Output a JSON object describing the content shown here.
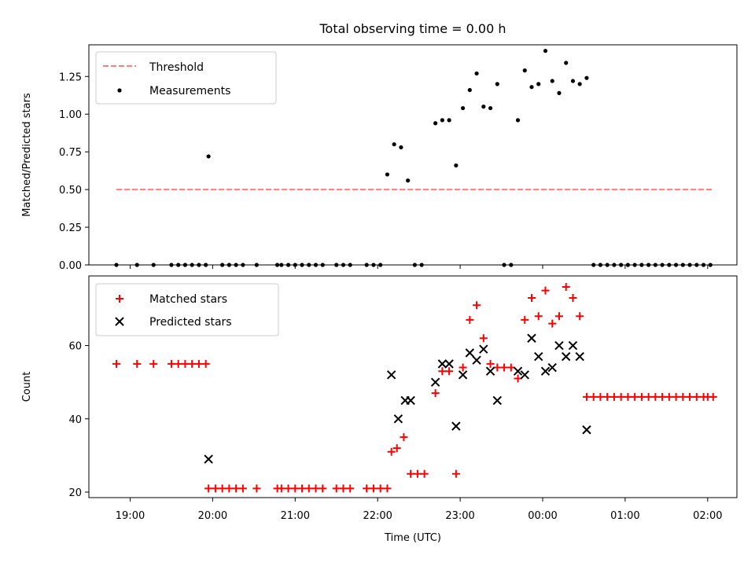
{
  "title": "Total observing time = 0.00 h",
  "colors": {
    "threshold": "#ff7f7f",
    "measurements": "#000000",
    "matched": "#ff0000",
    "predicted": "#000000"
  },
  "chart_data": [
    {
      "type": "scatter",
      "ylabel": "Matched/Predicted stars",
      "ylim": [
        0,
        1.46
      ],
      "yticks": [
        "0.00",
        "0.25",
        "0.50",
        "0.75",
        "1.00",
        "1.25"
      ],
      "ytick_values": [
        0,
        0.25,
        0.5,
        0.75,
        1.0,
        1.25
      ],
      "legend": {
        "placement": "top-left",
        "entries": [
          "Threshold",
          "Measurements"
        ]
      },
      "series": [
        {
          "name": "Threshold",
          "style": "dashed-line",
          "x": [
            "18:50",
            "02:03"
          ],
          "values": [
            0.5,
            0.5
          ]
        },
        {
          "name": "Measurements",
          "style": "point",
          "x": [
            "18:50",
            "19:05",
            "19:17",
            "19:30",
            "19:35",
            "19:40",
            "19:45",
            "19:50",
            "19:55",
            "19:57",
            "20:07",
            "20:12",
            "20:17",
            "20:22",
            "20:32",
            "20:47",
            "20:50",
            "20:55",
            "21:00",
            "21:05",
            "21:10",
            "21:15",
            "21:20",
            "21:30",
            "21:35",
            "21:40",
            "21:52",
            "21:57",
            "22:02",
            "22:07",
            "22:12",
            "22:17",
            "22:22",
            "22:27",
            "22:32",
            "22:42",
            "22:47",
            "22:52",
            "22:57",
            "23:02",
            "23:07",
            "23:12",
            "23:17",
            "23:22",
            "23:27",
            "23:32",
            "23:37",
            "23:42",
            "23:47",
            "23:52",
            "23:57",
            "00:02",
            "00:07",
            "00:12",
            "00:17",
            "00:22",
            "00:27",
            "00:32",
            "00:37",
            "00:42",
            "00:47",
            "00:52",
            "00:57",
            "01:02",
            "01:07",
            "01:12",
            "01:17",
            "01:22",
            "01:27",
            "01:32",
            "01:37",
            "01:42",
            "01:47",
            "01:52",
            "01:57",
            "02:02"
          ],
          "values": [
            0,
            0,
            0,
            0,
            0,
            0,
            0,
            0,
            0,
            0.72,
            0,
            0,
            0,
            0,
            0,
            0,
            0,
            0,
            0,
            0,
            0,
            0,
            0,
            0,
            0,
            0,
            0,
            0,
            0,
            0.6,
            0.8,
            0.78,
            0.56,
            0,
            0,
            0.94,
            0.96,
            0.96,
            0.66,
            1.04,
            1.16,
            1.27,
            1.05,
            1.04,
            1.2,
            0,
            0,
            0.96,
            1.29,
            1.18,
            1.2,
            1.42,
            1.22,
            1.14,
            1.34,
            1.22,
            1.2,
            1.24,
            0,
            0,
            0,
            0,
            0,
            0,
            0,
            0,
            0,
            0,
            0,
            0,
            0,
            0,
            0,
            0,
            0,
            0
          ]
        }
      ]
    },
    {
      "type": "scatter",
      "ylabel": "Count",
      "xlabel": "Time (UTC)",
      "ylim": [
        18.5,
        79
      ],
      "yticks": [
        "20",
        "40",
        "60"
      ],
      "ytick_values": [
        20,
        40,
        60
      ],
      "xticks": [
        "19:00",
        "20:00",
        "21:00",
        "22:00",
        "23:00",
        "00:00",
        "01:00",
        "02:00"
      ],
      "legend": {
        "placement": "top-left",
        "entries": [
          "Matched stars",
          "Predicted stars"
        ]
      },
      "series": [
        {
          "name": "Matched stars",
          "marker": "plus",
          "x": [
            "18:50",
            "19:05",
            "19:17",
            "19:30",
            "19:35",
            "19:40",
            "19:45",
            "19:50",
            "19:55",
            "19:57",
            "20:02",
            "20:07",
            "20:12",
            "20:17",
            "20:22",
            "20:32",
            "20:47",
            "20:50",
            "20:55",
            "21:00",
            "21:05",
            "21:10",
            "21:15",
            "21:20",
            "21:30",
            "21:35",
            "21:40",
            "21:52",
            "21:57",
            "22:02",
            "22:07",
            "22:10",
            "22:14",
            "22:19",
            "22:24",
            "22:29",
            "22:34",
            "22:42",
            "22:47",
            "22:52",
            "22:57",
            "23:02",
            "23:07",
            "23:12",
            "23:17",
            "23:22",
            "23:27",
            "23:32",
            "23:37",
            "23:42",
            "23:47",
            "23:52",
            "23:57",
            "00:02",
            "00:07",
            "00:12",
            "00:17",
            "00:22",
            "00:27",
            "00:32",
            "00:37",
            "00:42",
            "00:47",
            "00:52",
            "00:57",
            "01:02",
            "01:07",
            "01:12",
            "01:17",
            "01:22",
            "01:27",
            "01:32",
            "01:37",
            "01:42",
            "01:47",
            "01:52",
            "01:57",
            "02:00",
            "02:04"
          ],
          "values": [
            55,
            55,
            55,
            55,
            55,
            55,
            55,
            55,
            55,
            21,
            21,
            21,
            21,
            21,
            21,
            21,
            21,
            21,
            21,
            21,
            21,
            21,
            21,
            21,
            21,
            21,
            21,
            21,
            21,
            21,
            21,
            31,
            32,
            35,
            25,
            25,
            25,
            47,
            53,
            53,
            25,
            54,
            67,
            71,
            62,
            55,
            54,
            54,
            54,
            51,
            67,
            73,
            68,
            75,
            66,
            68,
            76,
            73,
            68,
            46,
            46,
            46,
            46,
            46,
            46,
            46,
            46,
            46,
            46,
            46,
            46,
            46,
            46,
            46,
            46,
            46,
            46,
            46,
            46
          ]
        },
        {
          "name": "Predicted stars",
          "marker": "x",
          "x": [
            "19:57",
            "22:10",
            "22:15",
            "22:20",
            "22:24",
            "22:42",
            "22:47",
            "22:52",
            "22:57",
            "23:02",
            "23:07",
            "23:12",
            "23:17",
            "23:22",
            "23:27",
            "23:42",
            "23:47",
            "23:52",
            "23:57",
            "00:02",
            "00:07",
            "00:12",
            "00:17",
            "00:22",
            "00:27",
            "00:32"
          ],
          "values": [
            29,
            52,
            40,
            45,
            45,
            50,
            55,
            55,
            38,
            52,
            58,
            56,
            59,
            53,
            45,
            53,
            52,
            62,
            57,
            53,
            54,
            60,
            57,
            60,
            57,
            37
          ]
        }
      ]
    }
  ]
}
